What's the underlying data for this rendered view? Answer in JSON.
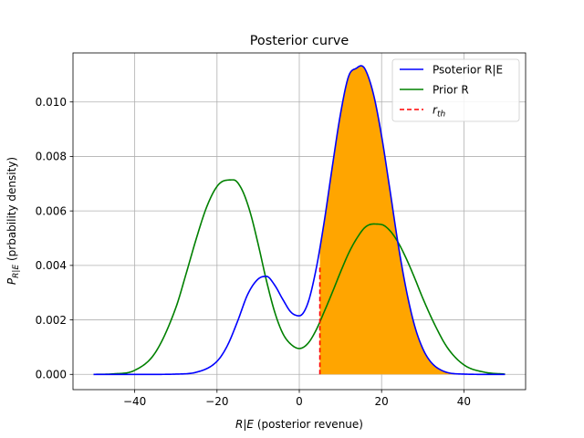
{
  "chart_data": {
    "type": "line",
    "title": "Posterior curve",
    "xlabel": "R|E (posterior revenue)",
    "ylabel": "P_{R|E} (prbability density)",
    "xlim": [
      -55,
      55
    ],
    "ylim": [
      -0.00056,
      0.0118
    ],
    "x_ticks": [
      -40,
      -20,
      0,
      20,
      40
    ],
    "y_ticks": [
      0.0,
      0.002,
      0.004,
      0.006,
      0.008,
      0.01
    ],
    "x_tick_labels": [
      "−40",
      "−20",
      "0",
      "20",
      "40"
    ],
    "y_tick_labels": [
      "0.000",
      "0.002",
      "0.004",
      "0.006",
      "0.008",
      "0.010"
    ],
    "grid": true,
    "legend_position": "top-right",
    "series": [
      {
        "name": "Psoterior R|E",
        "color": "#0000ff",
        "style": "solid",
        "x": [
          -50,
          -45,
          -40,
          -35,
          -30,
          -25,
          -20,
          -17.5,
          -15,
          -12.5,
          -10,
          -8,
          -6,
          -4,
          -2,
          0,
          2,
          4,
          6,
          8,
          10,
          12,
          14,
          15,
          16,
          18,
          20,
          22,
          24,
          26,
          28,
          30,
          32,
          35,
          40,
          45,
          50
        ],
        "values": [
          0.0,
          0.0,
          0.0,
          0.0,
          1e-05,
          8e-05,
          0.00048,
          0.00105,
          0.00195,
          0.00295,
          0.0035,
          0.0036,
          0.00328,
          0.00275,
          0.00228,
          0.00215,
          0.00258,
          0.0038,
          0.00555,
          0.0076,
          0.00955,
          0.01095,
          0.01125,
          0.01133,
          0.0112,
          0.0103,
          0.00875,
          0.0068,
          0.0048,
          0.0031,
          0.0018,
          0.00095,
          0.00045,
          0.00012,
          1e-05,
          0.0,
          0.0
        ]
      },
      {
        "name": "Prior R",
        "color": "#008000",
        "style": "solid",
        "x": [
          -50,
          -45,
          -40,
          -35,
          -30,
          -27.5,
          -25,
          -22.5,
          -20,
          -18,
          -16,
          -14,
          -12,
          -10,
          -8,
          -6,
          -4,
          -2,
          0,
          2,
          4,
          6,
          8,
          10,
          12,
          14,
          16,
          18,
          20,
          22,
          24,
          26,
          28,
          30,
          33,
          36,
          40,
          45,
          50
        ],
        "values": [
          0.0,
          2e-05,
          0.00015,
          0.0008,
          0.00245,
          0.0037,
          0.005,
          0.00615,
          0.0069,
          0.00712,
          0.00714,
          0.0068,
          0.00598,
          0.00478,
          0.00345,
          0.0023,
          0.0015,
          0.0011,
          0.00095,
          0.00112,
          0.0016,
          0.00228,
          0.003,
          0.00375,
          0.00445,
          0.005,
          0.0054,
          0.00552,
          0.0055,
          0.00528,
          0.00485,
          0.00425,
          0.00355,
          0.0028,
          0.0018,
          0.00098,
          0.00035,
          8e-05,
          1e-05
        ]
      },
      {
        "name": "r_th",
        "color": "#ff0000",
        "style": "dashed",
        "x": [
          5,
          5
        ],
        "values": [
          0.0,
          0.00395
        ]
      }
    ],
    "fill": {
      "color": "#ffa500",
      "series": "Psoterior R|E",
      "x_from": 5,
      "x_to": 50
    }
  }
}
